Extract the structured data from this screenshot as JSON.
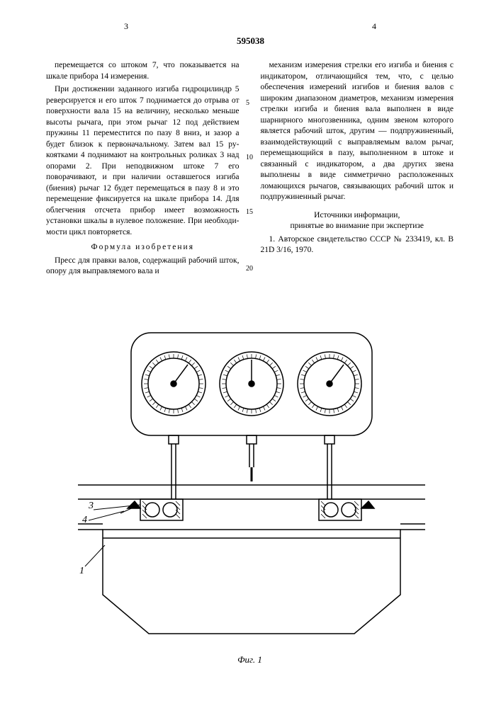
{
  "document": {
    "number": "595038",
    "page_left": "3",
    "page_right": "4",
    "line_markers": {
      "5": 56,
      "10": 133,
      "15": 210,
      "20": 290
    }
  },
  "left_column": {
    "p1": "перемещается со штоком 7, что показывается на шкале прибора 14 измерения.",
    "p2": "При достижении заданного изгиба гидро­цилиндр 5 реверсируется и его шток 7 подни­мается до отрыва от поверхности вала 15 на величину, несколько меньше высоты рычага, при этом рычаг 12 под действием пружины 11 переместится по пазу 8 вниз, и зазор а будет близок к первоначальному. Затем вал 15 ру­коятками 4 поднимают на контрольных роли­ках 3 над опорами 2. При неподвижном што­ке 7 его поворачивают, и при наличии остав­шегося изгиба (биения) рычаг 12 будет пере­мещаться в пазу 8 и это перемещение фикси­руется на шкале прибора 14. Для облегчения отсчета прибор имеет возможность установки шкалы в нулевое положение. При необходи­мости цикл повторяется.",
    "formula_title": "Формула изобретения",
    "p3": "Пресс для правки валов, содержащий рабо­чий шток, опору для выправляемого вала и"
  },
  "right_column": {
    "p1": "механизм измерения стрелки его изгиба и биения с индикатором, отличающийся тем, что, с целью обеспечения измерений из­гибов и биения валов с широким диапазоном диаметров, механизм измерения стрелки изги­ба и биения вала выполнен в виде шарнирно­го многозвенника, одним звеном которого яв­ляется рабочий шток, другим — подпружинен­ный, взаимодействующий с выправляемым ва­лом рычаг, перемещающийся в пазу, выпол­ненном в штоке и связанный с индикатором, а два других звена выполнены в виде симмет­рично расположенных ломающихся рычагов, связывающих рабочий шток и подпружинен­ный рычаг.",
    "sources_title": "Источники информации,\nпринятые во внимание при экспертизе",
    "p2": "1. Авторское свидетельство СССР № 233419, кл. В 21D 3/16, 1970."
  },
  "figure": {
    "label": "Фиг. 1",
    "callouts": [
      "1",
      "3",
      "4"
    ],
    "stroke_color": "#000000",
    "stroke_width": 1.5,
    "background": "#ffffff",
    "gauge_count": 3,
    "gauge_tick_count": 40
  }
}
